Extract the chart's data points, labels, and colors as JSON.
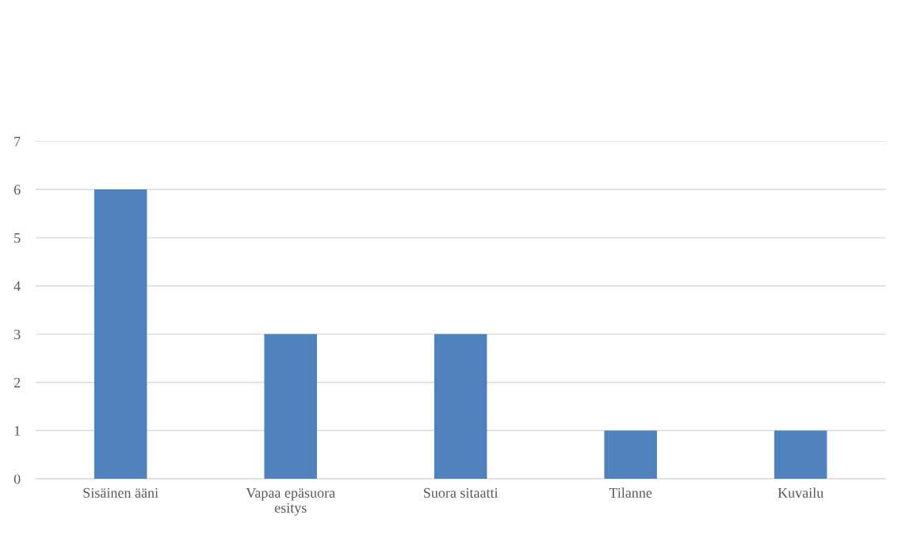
{
  "chart_data": {
    "type": "bar",
    "categories": [
      "Sisäinen ääni",
      "Vapaa epäsuora\nesitys",
      "Suora sitaatti",
      "Tilanne",
      "Kuvailu"
    ],
    "values": [
      6,
      3,
      3,
      1,
      1
    ],
    "color": "#4f81bd",
    "ylim": [
      0,
      7
    ],
    "yticks": [
      0,
      1,
      2,
      3,
      4,
      5,
      6,
      7
    ],
    "grid": "y"
  }
}
